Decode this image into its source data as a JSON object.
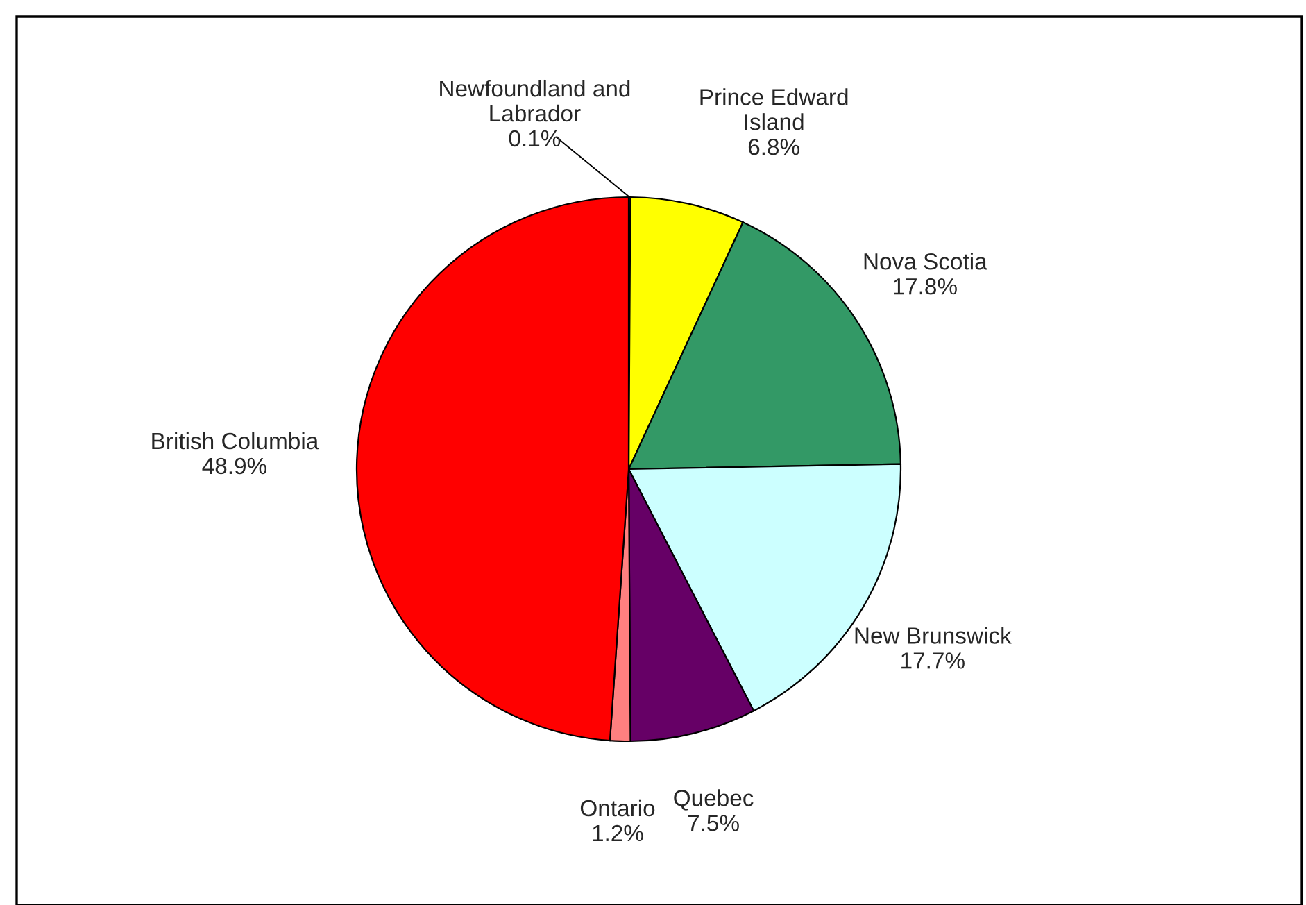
{
  "chart_data": {
    "type": "pie",
    "categories": [
      "Newfoundland and Labrador",
      "Prince Edward Island",
      "Nova Scotia",
      "New Brunswick",
      "Quebec",
      "Ontario",
      "British Columbia"
    ],
    "values": [
      0.1,
      6.8,
      17.8,
      17.7,
      7.5,
      1.2,
      48.9
    ],
    "value_labels": [
      "0.1%",
      "6.8%",
      "17.8%",
      "17.7%",
      "7.5%",
      "1.2%",
      "48.9%"
    ],
    "colors": [
      "#9999ff",
      "#ffff00",
      "#339966",
      "#ccffff",
      "#660066",
      "#ff8080",
      "#ff0000"
    ],
    "legend": false
  }
}
